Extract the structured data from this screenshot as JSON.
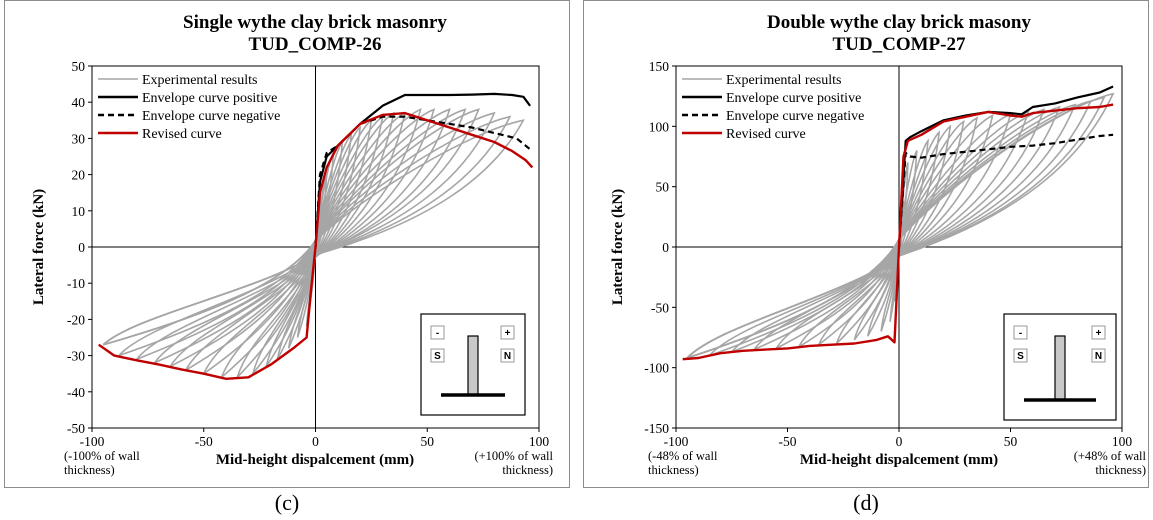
{
  "chart_data": [
    {
      "type": "line",
      "title": "Single wythe clay brick masonry",
      "subtitle": "TUD_COMP-26",
      "xlabel": "Mid-height dispalcement (mm)",
      "ylabel": "Lateral force (kN)",
      "xlim": [
        -100,
        100
      ],
      "ylim": [
        -50,
        50
      ],
      "xticks": [
        "-100",
        "-50",
        "0",
        "50",
        "100"
      ],
      "yticks": [
        "-50",
        "-40",
        "-30",
        "-20",
        "-10",
        "0",
        "10",
        "20",
        "30",
        "40",
        "50"
      ],
      "xnote_left": [
        "(-100% of wall",
        "thickness)"
      ],
      "xnote_right": [
        "(+100% of wall",
        "thickness)"
      ],
      "legend_position": "top-left",
      "grid": false,
      "legend": [
        {
          "label": "Experimental results",
          "color": "#a6a6a6",
          "dash": "solid"
        },
        {
          "label": "Envelope curve positive",
          "color": "#000000",
          "dash": "solid"
        },
        {
          "label": "Envelope curve negative",
          "color": "#000000",
          "dash": "dashed"
        },
        {
          "label": "Revised curve",
          "color": "#c00000",
          "dash": "solid"
        }
      ],
      "inset_labels": {
        "minus": "-",
        "plus": "+",
        "south": "S",
        "north": "N"
      },
      "hysteresis": {
        "peaks_positive": [
          [
            1,
            4
          ],
          [
            3,
            12
          ],
          [
            5,
            20
          ],
          [
            8,
            26
          ],
          [
            12,
            29
          ],
          [
            16,
            31
          ],
          [
            20,
            33
          ],
          [
            25,
            35
          ],
          [
            30,
            36
          ],
          [
            35,
            37
          ],
          [
            40,
            37
          ],
          [
            47,
            38
          ],
          [
            53,
            38
          ],
          [
            60,
            38
          ],
          [
            67,
            38
          ],
          [
            73,
            38
          ],
          [
            80,
            37
          ],
          [
            87,
            36
          ],
          [
            93,
            35
          ]
        ],
        "peaks_negative": [
          [
            -2,
            -10
          ],
          [
            -4,
            -22
          ],
          [
            -8,
            -25
          ],
          [
            -12,
            -28
          ],
          [
            -17,
            -31
          ],
          [
            -22,
            -33
          ],
          [
            -28,
            -35
          ],
          [
            -35,
            -36
          ],
          [
            -42,
            -36
          ],
          [
            -50,
            -35
          ],
          [
            -58,
            -34
          ],
          [
            -65,
            -33
          ],
          [
            -72,
            -32
          ],
          [
            -80,
            -31
          ],
          [
            -88,
            -30
          ],
          [
            -95,
            -27
          ]
        ]
      },
      "series": [
        {
          "name": "Envelope curve positive",
          "color": "#000000",
          "dash": "solid",
          "x": [
            0,
            2,
            5,
            10,
            20,
            30,
            40,
            50,
            60,
            70,
            80,
            88,
            93,
            96
          ],
          "y": [
            0,
            18,
            25,
            28,
            34,
            39,
            42,
            42,
            42,
            42.1,
            42.3,
            42,
            41.5,
            39
          ]
        },
        {
          "name": "Envelope curve negative",
          "color": "#000000",
          "dash": "dashed",
          "x": [
            0,
            2,
            5,
            10,
            20,
            30,
            40,
            50,
            60,
            70,
            80,
            90,
            96
          ],
          "y": [
            0,
            20,
            26,
            28,
            34,
            36,
            36,
            35,
            34,
            33,
            31.5,
            30,
            27
          ]
        },
        {
          "name": "Revised curve",
          "color": "#c00000",
          "dash": "solid",
          "x": [
            -97,
            -90,
            -80,
            -70,
            -60,
            -50,
            -40,
            -30,
            -20,
            -10,
            -4,
            -2,
            0,
            2,
            5,
            10,
            20,
            30,
            40,
            50,
            60,
            70,
            80,
            88,
            94,
            97
          ],
          "y": [
            -27,
            -30,
            -31.3,
            -32.5,
            -33.8,
            -35,
            -36.4,
            -36,
            -32.5,
            -28,
            -25,
            -12,
            0,
            15,
            22,
            28,
            34,
            36.5,
            37,
            35,
            33,
            31,
            29,
            26.5,
            24,
            22
          ]
        }
      ]
    },
    {
      "type": "line",
      "title": "Double wythe clay brick masony",
      "subtitle": "TUD_COMP-27",
      "xlabel": "Mid-height dispalcement (mm)",
      "ylabel": "Lateral force (kN)",
      "xlim": [
        -100,
        100
      ],
      "ylim": [
        -150,
        150
      ],
      "xticks": [
        "-100",
        "-50",
        "0",
        "50",
        "100"
      ],
      "yticks": [
        "-150",
        "-100",
        "-50",
        "0",
        "50",
        "100",
        "150"
      ],
      "xnote_left": [
        "(-48% of wall",
        "thickness)"
      ],
      "xnote_right": [
        "(+48% of wall",
        "thickness)"
      ],
      "legend_position": "top-left",
      "grid": false,
      "legend": [
        {
          "label": "Experimental results",
          "color": "#a6a6a6",
          "dash": "solid"
        },
        {
          "label": "Envelope curve positive",
          "color": "#000000",
          "dash": "solid"
        },
        {
          "label": "Envelope curve negative",
          "color": "#000000",
          "dash": "dashed"
        },
        {
          "label": "Revised curve",
          "color": "#c00000",
          "dash": "solid"
        }
      ],
      "inset_labels": {
        "minus": "-",
        "plus": "+",
        "south": "S",
        "north": "N"
      },
      "hysteresis": {
        "peaks_positive": [
          [
            1,
            20
          ],
          [
            2,
            45
          ],
          [
            4,
            70
          ],
          [
            8,
            80
          ],
          [
            13,
            88
          ],
          [
            18,
            95
          ],
          [
            23,
            100
          ],
          [
            29,
            104
          ],
          [
            35,
            107
          ],
          [
            42,
            109
          ],
          [
            50,
            110
          ],
          [
            58,
            112
          ],
          [
            65,
            114
          ],
          [
            72,
            116
          ],
          [
            79,
            118
          ],
          [
            86,
            121
          ],
          [
            92,
            124
          ],
          [
            96,
            127
          ]
        ],
        "peaks_negative": [
          [
            -1,
            -20
          ],
          [
            -2,
            -45
          ],
          [
            -4,
            -62
          ],
          [
            -8,
            -70
          ],
          [
            -14,
            -74
          ],
          [
            -20,
            -77
          ],
          [
            -28,
            -80
          ],
          [
            -36,
            -81
          ],
          [
            -45,
            -83
          ],
          [
            -55,
            -84
          ],
          [
            -65,
            -85
          ],
          [
            -75,
            -87
          ],
          [
            -85,
            -90
          ],
          [
            -95,
            -92
          ]
        ]
      },
      "series": [
        {
          "name": "Envelope curve positive",
          "color": "#000000",
          "dash": "solid",
          "x": [
            0,
            3,
            5,
            10,
            20,
            30,
            40,
            50,
            55,
            60,
            70,
            80,
            90,
            96
          ],
          "y": [
            0,
            88,
            91,
            96,
            105,
            109,
            112,
            111,
            110,
            116,
            119,
            124,
            128,
            133
          ]
        },
        {
          "name": "Envelope curve negative",
          "color": "#000000",
          "dash": "dashed",
          "x": [
            0,
            3,
            5,
            10,
            20,
            30,
            40,
            50,
            60,
            70,
            80,
            90,
            96
          ],
          "y": [
            0,
            78,
            75,
            74,
            77,
            79,
            81,
            83,
            84,
            86,
            89,
            92,
            93
          ]
        },
        {
          "name": "Revised curve",
          "color": "#c00000",
          "dash": "solid",
          "x": [
            -97,
            -90,
            -80,
            -70,
            -60,
            -50,
            -40,
            -30,
            -20,
            -10,
            -5,
            -2,
            0,
            2,
            4,
            10,
            20,
            30,
            40,
            50,
            55,
            60,
            70,
            80,
            90,
            96
          ],
          "y": [
            -93,
            -92,
            -88,
            -86,
            -85,
            -84,
            -82,
            -81,
            -80,
            -77,
            -74,
            -79,
            0,
            75,
            88,
            93,
            104,
            108,
            112,
            109,
            108,
            111,
            113,
            115,
            116,
            118
          ]
        }
      ]
    }
  ],
  "captions": [
    "(c)",
    "(d)"
  ]
}
